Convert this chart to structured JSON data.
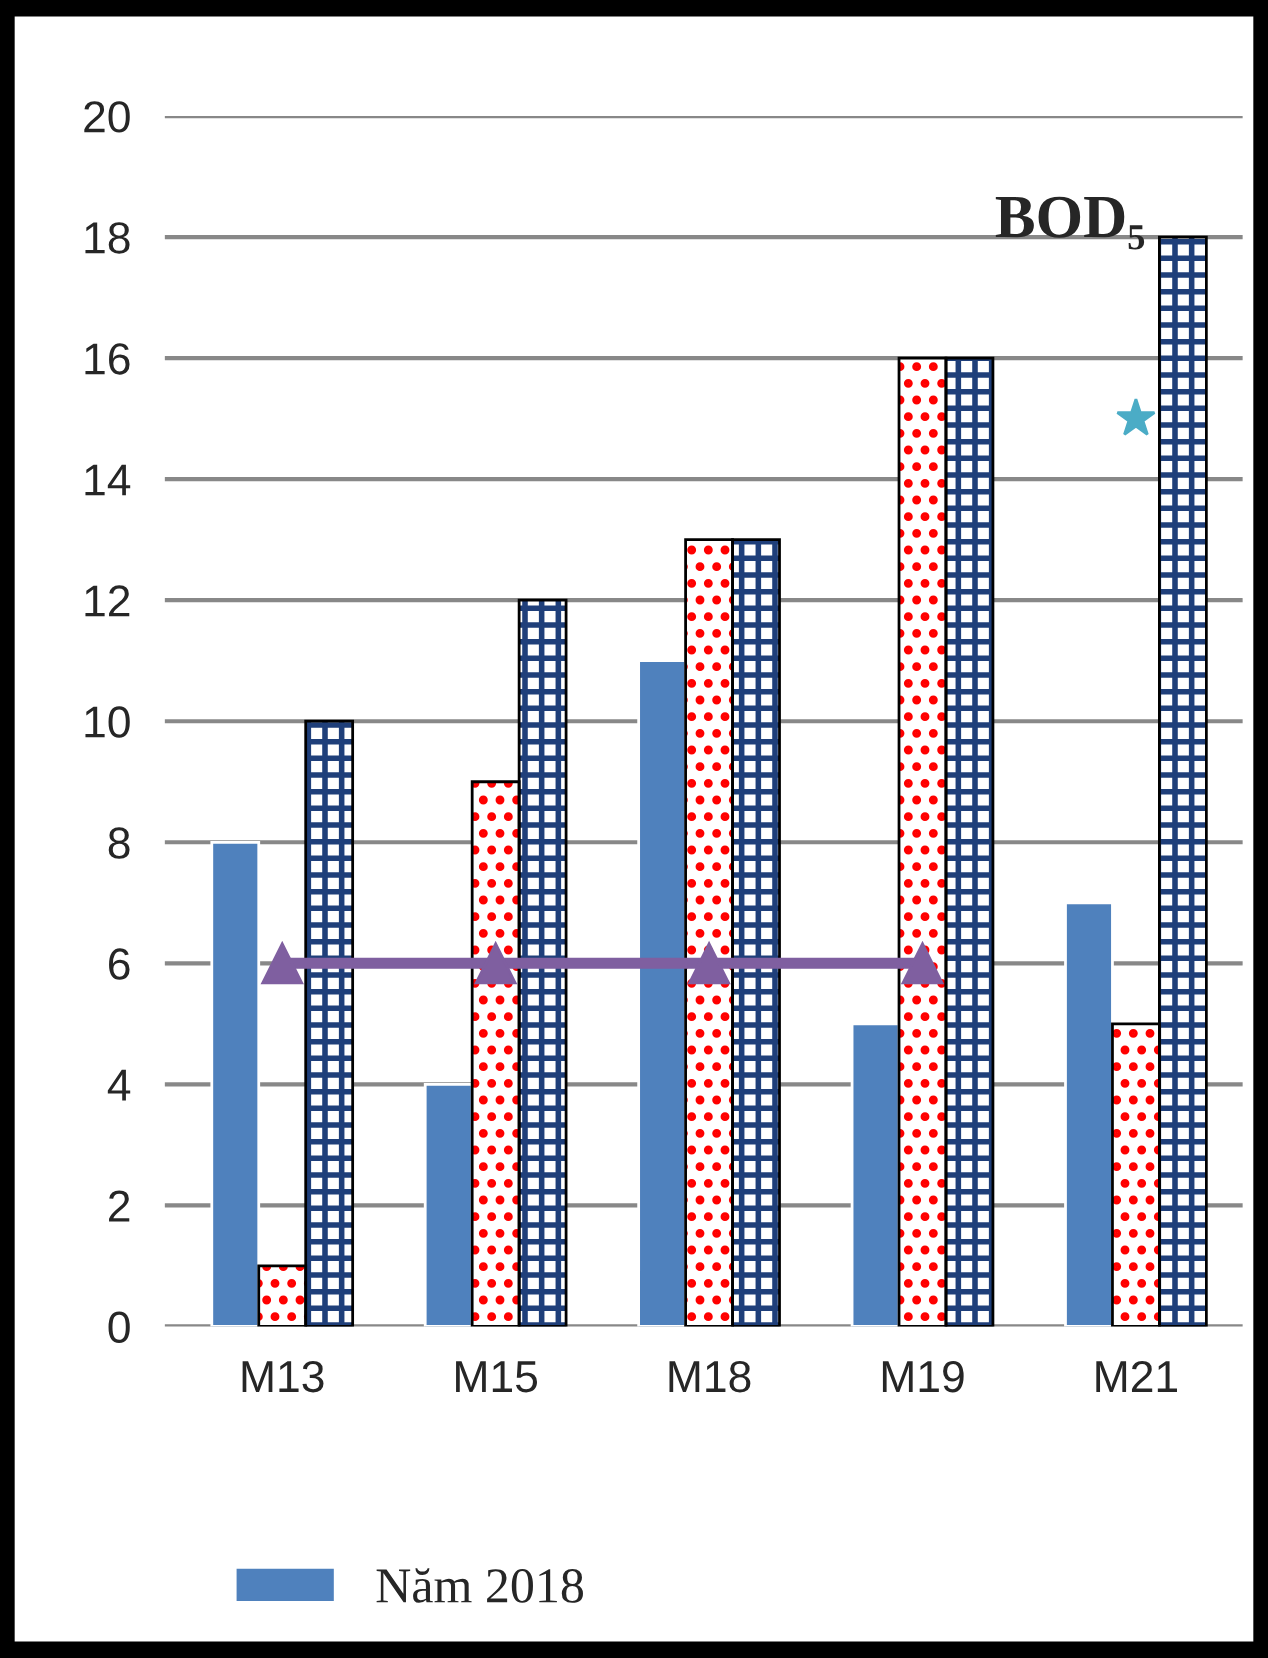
{
  "chart_data": {
    "type": "bar",
    "title": "BOD₅",
    "categories": [
      "M13",
      "M15",
      "M18",
      "M19",
      "M21"
    ],
    "series": [
      {
        "name": "Năm 2018",
        "color": "#4f81bd",
        "values": [
          8,
          4,
          11,
          5,
          7
        ]
      },
      {
        "color": "#ff0000",
        "values": [
          1,
          9,
          13,
          16,
          5
        ]
      },
      {
        "color": "#1f3f7a",
        "values": [
          10,
          12,
          13,
          16,
          18
        ]
      },
      {
        "type": "line",
        "color": "#7f5fa0",
        "marker": "triangle",
        "values": [
          6,
          6,
          6,
          6,
          null
        ]
      },
      {
        "type": "line",
        "color": "#4bacc6",
        "marker": "star",
        "values": [
          null,
          null,
          null,
          null,
          15
        ]
      }
    ],
    "ylim": [
      0,
      20
    ],
    "yticks": [
      0,
      2,
      4,
      6,
      8,
      10,
      12,
      14,
      16,
      18,
      20
    ],
    "grid": "y",
    "legend": "bottom"
  }
}
